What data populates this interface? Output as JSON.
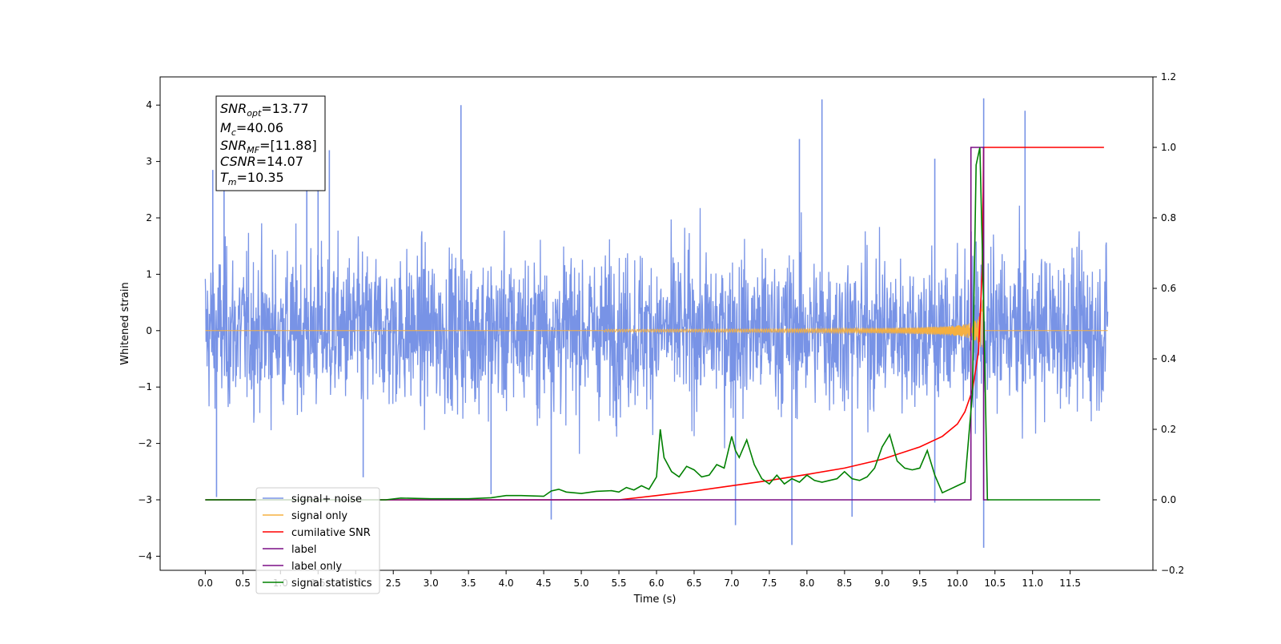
{
  "chart_data": {
    "type": "line",
    "xlabel": "Time (s)",
    "ylabel_left": "Whitened strain",
    "xlim": [
      -0.6,
      12.6
    ],
    "ylim_left": [
      -4.25,
      4.5
    ],
    "ylim_right": [
      -0.2,
      1.2
    ],
    "x_ticks": [
      0.0,
      0.5,
      1.0,
      1.5,
      2.0,
      2.5,
      3.0,
      3.5,
      4.0,
      4.5,
      5.0,
      5.5,
      6.0,
      6.5,
      7.0,
      7.5,
      8.0,
      8.5,
      9.0,
      9.5,
      10.0,
      10.5,
      11.0,
      11.5
    ],
    "x_tick_labels": [
      "0.0",
      "0.5",
      "1.0",
      "1.5",
      "2.0",
      "2.5",
      "3.0",
      "3.5",
      "4.0",
      "4.5",
      "5.0",
      "5.5",
      "6.0",
      "6.5",
      "7.0",
      "7.5",
      "8.0",
      "8.5",
      "9.0",
      "9.5",
      "10.0",
      "10.5",
      "11.0",
      "11.5"
    ],
    "y_left_ticks": [
      4,
      3,
      2,
      1,
      0,
      -1,
      -2,
      -3,
      -4
    ],
    "y_left_tick_labels": [
      "4",
      "3",
      "2",
      "1",
      "0",
      "−1",
      "−2",
      "−3",
      "−4"
    ],
    "y_right_ticks": [
      1.2,
      1.0,
      0.8,
      0.6,
      0.4,
      0.2,
      0.0,
      -0.2
    ],
    "y_right_tick_labels": [
      "1.2",
      "1.0",
      "0.8",
      "0.6",
      "0.4",
      "0.2",
      "0.0",
      "−0.2"
    ],
    "annotation": {
      "snr_opt": {
        "base": "SNR",
        "sub": "opt",
        "value": "=13.77"
      },
      "mc": {
        "base": "M",
        "sub": "c",
        "value": "=40.06"
      },
      "snr_mf": {
        "base": "SNR",
        "sub": "MF",
        "value": "=[11.88]"
      },
      "csnr": {
        "base": "CSNR",
        "value": "=14.07"
      },
      "tm": {
        "base": "T",
        "sub": "m",
        "value": "=10.35"
      }
    },
    "legend_position": "lower-left",
    "series": [
      {
        "name": "signal+ noise",
        "color": "#7893e6",
        "axis": "left",
        "x_range": [
          0.0,
          12.0
        ],
        "amplitude_typical": 1.3,
        "peaks": [
          [
            0.1,
            2.85
          ],
          [
            0.25,
            2.6
          ],
          [
            1.35,
            2.5
          ],
          [
            1.5,
            2.8
          ],
          [
            1.65,
            3.2
          ],
          [
            3.4,
            4.0
          ],
          [
            7.9,
            3.4
          ],
          [
            8.2,
            4.1
          ],
          [
            9.7,
            3.05
          ],
          [
            10.35,
            4.12
          ],
          [
            10.9,
            3.9
          ],
          [
            0.15,
            -2.95
          ],
          [
            2.1,
            -2.6
          ],
          [
            3.8,
            -2.9
          ],
          [
            4.6,
            -3.35
          ],
          [
            7.05,
            -3.45
          ],
          [
            7.8,
            -3.8
          ],
          [
            8.6,
            -3.3
          ],
          [
            9.7,
            -3.05
          ],
          [
            10.35,
            -3.85
          ]
        ]
      },
      {
        "name": "signal only",
        "color": "#f5b041",
        "axis": "left",
        "x_range": [
          0.0,
          12.0
        ],
        "merger_time": 10.35,
        "peak_amplitude": 1.1
      },
      {
        "name": "cumilative SNR",
        "color": "#ff0000",
        "axis": "right",
        "x": [
          0.0,
          5.5,
          6.0,
          6.5,
          7.0,
          7.5,
          8.0,
          8.5,
          9.0,
          9.5,
          9.8,
          10.0,
          10.1,
          10.2,
          10.28,
          10.33,
          10.35,
          11.95
        ],
        "y": [
          0.0,
          0.0,
          0.012,
          0.025,
          0.04,
          0.055,
          0.072,
          0.09,
          0.115,
          0.15,
          0.18,
          0.215,
          0.25,
          0.31,
          0.42,
          0.65,
          1.0,
          1.0
        ]
      },
      {
        "name": "label",
        "color": "#7b0f86",
        "axis": "right",
        "x": [
          0.0,
          10.18,
          10.18,
          10.35,
          10.35,
          10.42
        ],
        "y": [
          0.0,
          0.0,
          1.0,
          1.0,
          0.0,
          0.0
        ]
      },
      {
        "name": "label only",
        "color": "#7b0f86",
        "axis": "right"
      },
      {
        "name": "signal statistics",
        "color": "#008000",
        "axis": "right",
        "x": [
          0.0,
          2.4,
          2.6,
          3.0,
          3.5,
          3.8,
          4.0,
          4.2,
          4.5,
          4.6,
          4.7,
          4.8,
          5.0,
          5.2,
          5.4,
          5.5,
          5.6,
          5.7,
          5.8,
          5.9,
          6.0,
          6.05,
          6.1,
          6.2,
          6.3,
          6.4,
          6.5,
          6.6,
          6.7,
          6.8,
          6.9,
          7.0,
          7.05,
          7.1,
          7.2,
          7.3,
          7.4,
          7.5,
          7.6,
          7.7,
          7.8,
          7.9,
          8.0,
          8.1,
          8.2,
          8.3,
          8.4,
          8.5,
          8.6,
          8.7,
          8.8,
          8.9,
          9.0,
          9.1,
          9.2,
          9.3,
          9.4,
          9.5,
          9.6,
          9.7,
          9.8,
          9.9,
          10.0,
          10.1,
          10.2,
          10.25,
          10.3,
          10.35,
          10.4,
          10.5,
          11.9
        ],
        "y": [
          0.0,
          0.0,
          0.005,
          0.003,
          0.003,
          0.006,
          0.012,
          0.012,
          0.01,
          0.025,
          0.03,
          0.022,
          0.018,
          0.024,
          0.026,
          0.022,
          0.035,
          0.028,
          0.04,
          0.03,
          0.065,
          0.2,
          0.12,
          0.08,
          0.065,
          0.095,
          0.085,
          0.065,
          0.07,
          0.1,
          0.09,
          0.18,
          0.14,
          0.12,
          0.17,
          0.1,
          0.06,
          0.045,
          0.07,
          0.045,
          0.06,
          0.05,
          0.07,
          0.055,
          0.05,
          0.055,
          0.06,
          0.08,
          0.06,
          0.055,
          0.065,
          0.09,
          0.15,
          0.185,
          0.11,
          0.09,
          0.085,
          0.09,
          0.14,
          0.07,
          0.02,
          0.03,
          0.04,
          0.05,
          0.3,
          0.95,
          1.0,
          0.55,
          0.0,
          0.0,
          0.0
        ]
      }
    ]
  }
}
